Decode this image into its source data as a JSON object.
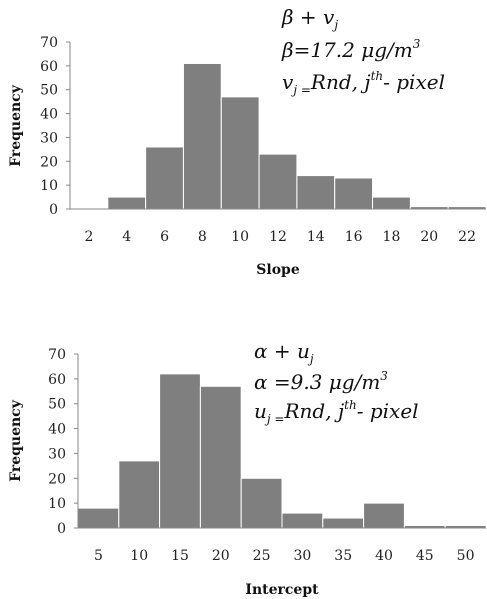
{
  "chart_data": [
    {
      "type": "bar",
      "xlabel": "Slope",
      "ylabel": "Frequency",
      "ylim": [
        0,
        70
      ],
      "yticks": [
        "0",
        "10",
        "20",
        "30",
        "40",
        "50",
        "60",
        "70"
      ],
      "categories": [
        "2",
        "4",
        "6",
        "8",
        "10",
        "12",
        "14",
        "16",
        "18",
        "20",
        "22"
      ],
      "values": [
        0,
        5,
        26,
        61,
        47,
        23,
        14,
        13,
        5,
        1,
        1
      ],
      "annotation": {
        "line1_a": "β + v",
        "line1_sub": "j",
        "line2_a": "β=17.2 μg/m",
        "line2_sup": "3",
        "line3_a": "v",
        "line3_sub": "j =",
        "line3_b": "Rnd, j",
        "line3_sup": "th",
        "line3_c": "- pixel"
      },
      "legend": "none",
      "grid": false
    },
    {
      "type": "bar",
      "xlabel": "Intercept",
      "ylabel": "Frequency",
      "ylim": [
        0,
        70
      ],
      "yticks": [
        "0",
        "10",
        "20",
        "30",
        "40",
        "50",
        "60",
        "70"
      ],
      "categories": [
        "5",
        "10",
        "15",
        "20",
        "25",
        "30",
        "35",
        "40",
        "45",
        "50"
      ],
      "values": [
        8,
        27,
        62,
        57,
        20,
        6,
        4,
        10,
        1,
        1
      ],
      "annotation": {
        "line1_a": "α + u",
        "line1_sub": "j",
        "line2_a": "α =9.3 μg/m",
        "line2_sup": "3",
        "line3_a": "u",
        "line3_sub": "j =",
        "line3_b": "Rnd, j",
        "line3_sup": "th",
        "line3_c": "- pixel"
      },
      "legend": "none",
      "grid": false
    }
  ]
}
